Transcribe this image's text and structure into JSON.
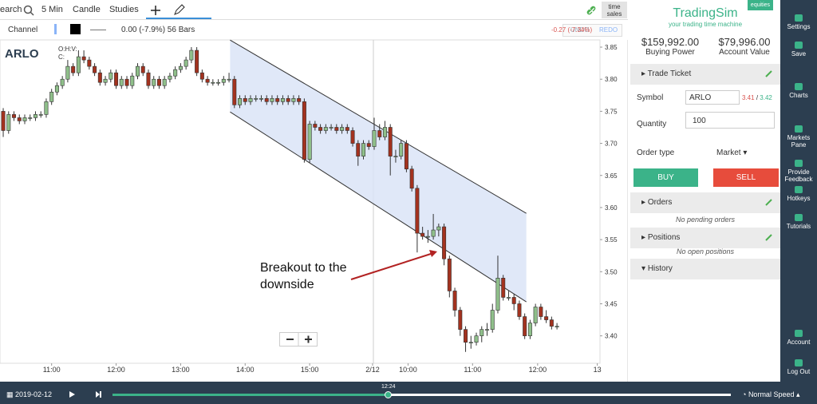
{
  "chart_data": {
    "type": "candlestick",
    "symbol": "ARLO",
    "ohlc_label": "O:H:V:",
    "close_label": "C:",
    "candles": [
      [
        3.75,
        3.755,
        3.71,
        3.72
      ],
      [
        3.72,
        3.75,
        3.715,
        3.745
      ],
      [
        3.745,
        3.75,
        3.735,
        3.74
      ],
      [
        3.74,
        3.745,
        3.73,
        3.735
      ],
      [
        3.735,
        3.745,
        3.73,
        3.74
      ],
      [
        3.74,
        3.745,
        3.735,
        3.74
      ],
      [
        3.74,
        3.75,
        3.735,
        3.745
      ],
      [
        3.745,
        3.75,
        3.74,
        3.745
      ],
      [
        3.745,
        3.77,
        3.74,
        3.765
      ],
      [
        3.765,
        3.785,
        3.76,
        3.78
      ],
      [
        3.78,
        3.795,
        3.775,
        3.79
      ],
      [
        3.79,
        3.805,
        3.785,
        3.8
      ],
      [
        3.8,
        3.83,
        3.795,
        3.82
      ],
      [
        3.82,
        3.825,
        3.805,
        3.81
      ],
      [
        3.81,
        3.845,
        3.805,
        3.835
      ],
      [
        3.835,
        3.845,
        3.825,
        3.83
      ],
      [
        3.83,
        3.835,
        3.815,
        3.82
      ],
      [
        3.82,
        3.825,
        3.805,
        3.81
      ],
      [
        3.81,
        3.815,
        3.79,
        3.795
      ],
      [
        3.795,
        3.805,
        3.79,
        3.8
      ],
      [
        3.8,
        3.815,
        3.795,
        3.81
      ],
      [
        3.81,
        3.815,
        3.785,
        3.79
      ],
      [
        3.79,
        3.805,
        3.785,
        3.8
      ],
      [
        3.8,
        3.805,
        3.785,
        3.79
      ],
      [
        3.79,
        3.81,
        3.785,
        3.805
      ],
      [
        3.805,
        3.825,
        3.8,
        3.82
      ],
      [
        3.82,
        3.825,
        3.805,
        3.81
      ],
      [
        3.81,
        3.815,
        3.785,
        3.79
      ],
      [
        3.79,
        3.805,
        3.785,
        3.8
      ],
      [
        3.8,
        3.805,
        3.785,
        3.79
      ],
      [
        3.79,
        3.805,
        3.785,
        3.8
      ],
      [
        3.8,
        3.81,
        3.795,
        3.805
      ],
      [
        3.805,
        3.82,
        3.8,
        3.815
      ],
      [
        3.815,
        3.825,
        3.81,
        3.82
      ],
      [
        3.82,
        3.835,
        3.815,
        3.83
      ],
      [
        3.83,
        3.85,
        3.825,
        3.845
      ],
      [
        3.845,
        3.85,
        3.805,
        3.81
      ],
      [
        3.81,
        3.815,
        3.795,
        3.8
      ],
      [
        3.8,
        3.805,
        3.79,
        3.795
      ],
      [
        3.795,
        3.8,
        3.79,
        3.795
      ],
      [
        3.795,
        3.8,
        3.79,
        3.795
      ],
      [
        3.795,
        3.805,
        3.79,
        3.8
      ],
      [
        3.8,
        3.81,
        3.795,
        3.8
      ],
      [
        3.8,
        3.805,
        3.755,
        3.76
      ],
      [
        3.76,
        3.775,
        3.755,
        3.77
      ],
      [
        3.77,
        3.775,
        3.76,
        3.765
      ],
      [
        3.765,
        3.775,
        3.76,
        3.77
      ],
      [
        3.77,
        3.775,
        3.765,
        3.77
      ],
      [
        3.77,
        3.775,
        3.765,
        3.77
      ],
      [
        3.77,
        3.775,
        3.76,
        3.765
      ],
      [
        3.765,
        3.775,
        3.76,
        3.77
      ],
      [
        3.77,
        3.775,
        3.76,
        3.765
      ],
      [
        3.765,
        3.775,
        3.76,
        3.77
      ],
      [
        3.77,
        3.775,
        3.76,
        3.765
      ],
      [
        3.765,
        3.775,
        3.76,
        3.77
      ],
      [
        3.77,
        3.775,
        3.76,
        3.765
      ],
      [
        3.765,
        3.77,
        3.67,
        3.675
      ],
      [
        3.675,
        3.735,
        3.67,
        3.73
      ],
      [
        3.73,
        3.735,
        3.72,
        3.725
      ],
      [
        3.725,
        3.73,
        3.715,
        3.72
      ],
      [
        3.72,
        3.73,
        3.715,
        3.725
      ],
      [
        3.725,
        3.73,
        3.72,
        3.725
      ],
      [
        3.725,
        3.73,
        3.715,
        3.72
      ],
      [
        3.72,
        3.73,
        3.715,
        3.725
      ],
      [
        3.725,
        3.73,
        3.715,
        3.72
      ],
      [
        3.72,
        3.725,
        3.695,
        3.7
      ],
      [
        3.7,
        3.705,
        3.665,
        3.68
      ],
      [
        3.68,
        3.705,
        3.675,
        3.7
      ],
      [
        3.7,
        3.705,
        3.69,
        3.695
      ],
      [
        3.695,
        3.74,
        3.69,
        3.72
      ],
      [
        3.72,
        3.73,
        3.705,
        3.71
      ],
      [
        3.71,
        3.735,
        3.705,
        3.725
      ],
      [
        3.725,
        3.73,
        3.65,
        3.68
      ],
      [
        3.68,
        3.69,
        3.67,
        3.68
      ],
      [
        3.68,
        3.705,
        3.675,
        3.7
      ],
      [
        3.7,
        3.705,
        3.655,
        3.66
      ],
      [
        3.66,
        3.665,
        3.625,
        3.63
      ],
      [
        3.63,
        3.635,
        3.53,
        3.56
      ],
      [
        3.56,
        3.57,
        3.55,
        3.555
      ],
      [
        3.555,
        3.565,
        3.545,
        3.555
      ],
      [
        3.555,
        3.59,
        3.55,
        3.565
      ],
      [
        3.565,
        3.575,
        3.555,
        3.57
      ],
      [
        3.57,
        3.575,
        3.51,
        3.52
      ],
      [
        3.52,
        3.525,
        3.46,
        3.47
      ],
      [
        3.47,
        3.475,
        3.43,
        3.44
      ],
      [
        3.44,
        3.445,
        3.4,
        3.41
      ],
      [
        3.41,
        3.415,
        3.375,
        3.39
      ],
      [
        3.39,
        3.4,
        3.38,
        3.39
      ],
      [
        3.39,
        3.405,
        3.385,
        3.4
      ],
      [
        3.4,
        3.415,
        3.39,
        3.41
      ],
      [
        3.41,
        3.42,
        3.4,
        3.41
      ],
      [
        3.41,
        3.45,
        3.405,
        3.44
      ],
      [
        3.44,
        3.525,
        3.435,
        3.49
      ],
      [
        3.49,
        3.495,
        3.455,
        3.46
      ],
      [
        3.46,
        3.47,
        3.455,
        3.46
      ],
      [
        3.46,
        3.465,
        3.44,
        3.45
      ],
      [
        3.45,
        3.455,
        3.425,
        3.43
      ],
      [
        3.43,
        3.435,
        3.395,
        3.4
      ],
      [
        3.4,
        3.425,
        3.395,
        3.42
      ],
      [
        3.42,
        3.45,
        3.415,
        3.445
      ],
      [
        3.445,
        3.45,
        3.425,
        3.43
      ],
      [
        3.43,
        3.44,
        3.42,
        3.425
      ],
      [
        3.425,
        3.43,
        3.41,
        3.415
      ],
      [
        3.415,
        3.42,
        3.41,
        3.415
      ]
    ],
    "up_color": "#8fbf8a",
    "down_color": "#a3321f",
    "xlim": [
      -0.6,
      111
    ],
    "xticks": [
      {
        "value": 9,
        "label": "11:00"
      },
      {
        "value": 21,
        "label": "12:00"
      },
      {
        "value": 33,
        "label": "13:00"
      },
      {
        "value": 45,
        "label": "14:00"
      },
      {
        "value": 57,
        "label": "15:00"
      },
      {
        "value": 68.7,
        "label": "2/12"
      },
      {
        "value": 75.3,
        "label": "10:00"
      },
      {
        "value": 87.3,
        "label": "11:00"
      },
      {
        "value": 99.4,
        "label": "12:00"
      },
      {
        "value": 110.5,
        "label": "13"
      }
    ],
    "ylim": [
      3.361,
      3.8575
    ],
    "yticks": [
      3.85,
      {
        "value": 3.8,
        "label": "3.80"
      },
      3.75,
      {
        "value": 3.7,
        "label": "3.70"
      },
      3.65,
      {
        "value": 3.6,
        "label": "3.60"
      },
      3.55,
      {
        "value": 3.5,
        "label": "3.50"
      },
      3.45,
      {
        "value": 3.4,
        "label": "3.40"
      }
    ],
    "channel": {
      "x": [
        42.2,
        97.3
      ],
      "upper": [
        3.861,
        3.591
      ],
      "lower": [
        3.749,
        3.453
      ],
      "color": "#dbe4f7"
    },
    "annotation": [
      "Breakout to the",
      "downside"
    ]
  },
  "toolbar": {
    "search": "earch",
    "interval": "5 Min",
    "chart_type": "Candle",
    "studies": "Studies",
    "time_sales": [
      "time",
      "sales"
    ],
    "drawing": "Channel",
    "drawing_stats": "0.00 (-7.9%) 56 Bars",
    "change": "-0.27 (-7.34%)",
    "undo": "UNDO",
    "redo": "REDO"
  },
  "panel": {
    "brand": "TradingSim",
    "tagline": "your trading time machine",
    "badge": "equities",
    "buying_power": "$159,992.00",
    "buying_power_label": "Buying Power",
    "account_value": "$79,996.00",
    "account_value_label": "Account Value",
    "trade_ticket": "Trade Ticket",
    "symbol_label": "Symbol",
    "symbol": "ARLO",
    "bid": "3.41",
    "separator": "/",
    "ask": "3.42",
    "quantity_label": "Quantity",
    "quantity": "100",
    "order_type_label": "Order type",
    "order_type": "Market",
    "buy": "BUY",
    "sell": "SELL",
    "orders": "Orders",
    "no_orders": "No pending orders",
    "positions": "Positions",
    "no_positions": "No open positions",
    "history": "History"
  },
  "sidebar": [
    [
      "Settings"
    ],
    [
      "Save"
    ],
    [
      "Charts"
    ],
    [
      "Markets",
      "Pane"
    ],
    [
      "Provide",
      "Feedback"
    ],
    [
      "Hotkeys"
    ],
    [
      "Tutorials"
    ],
    [
      "Account"
    ],
    [
      "Log Out"
    ]
  ],
  "playback": {
    "date": "2019-02-12",
    "time": "12:24",
    "speed": "Normal Speed"
  }
}
